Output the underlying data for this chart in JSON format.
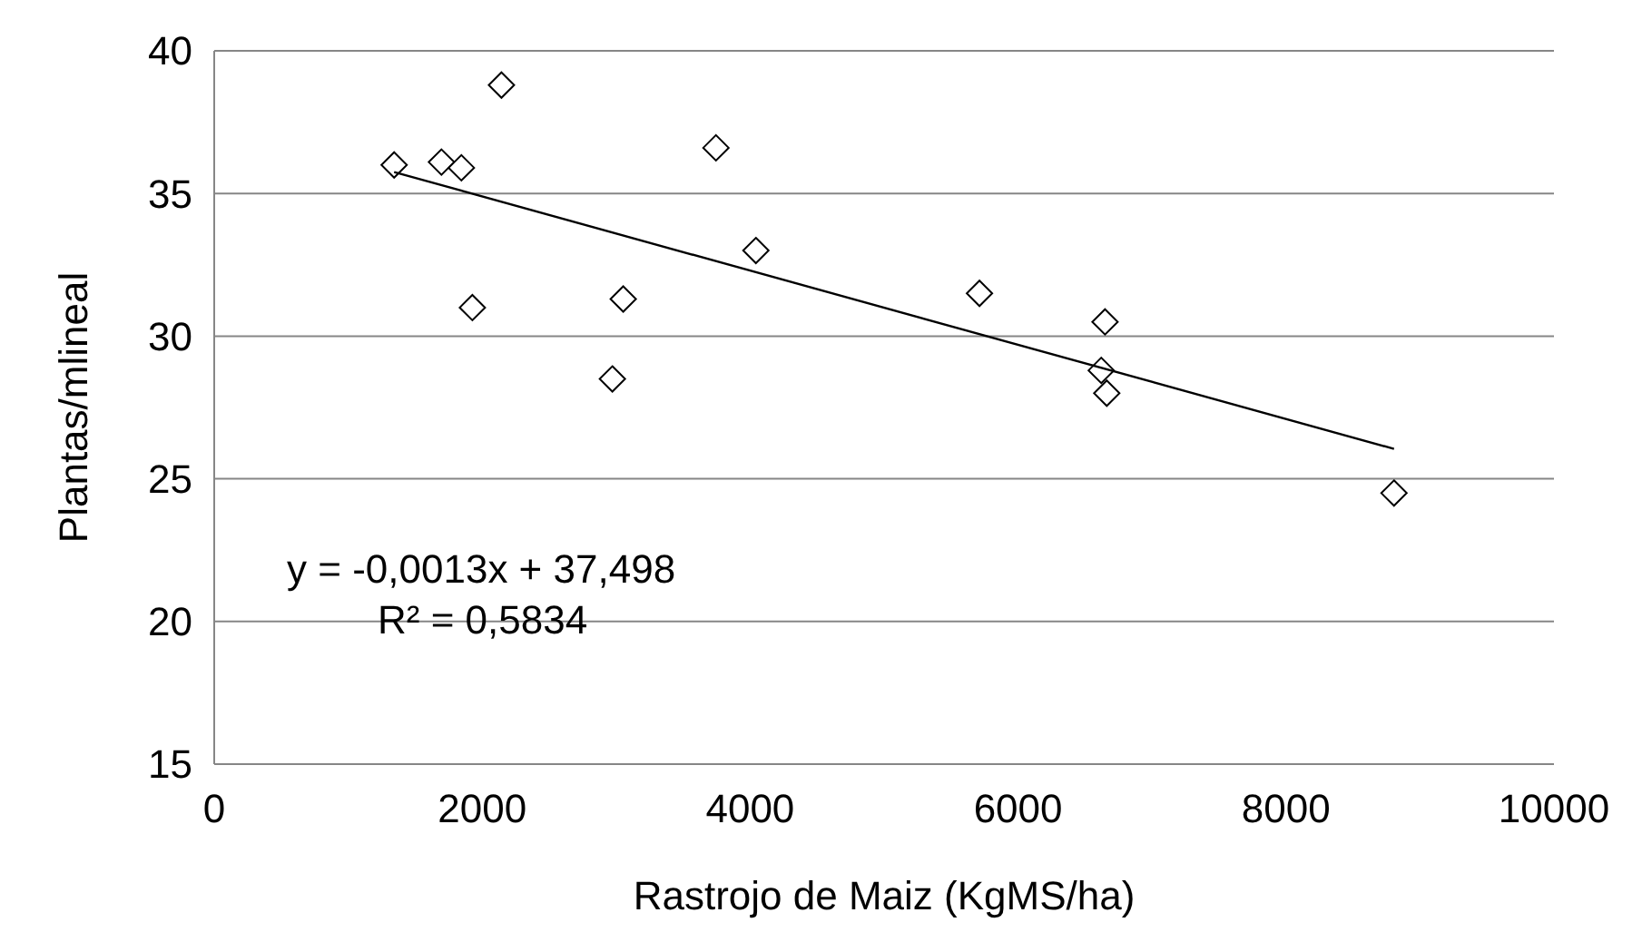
{
  "chart_data": {
    "type": "scatter",
    "xlabel": "Rastrojo de Maiz (KgMS/ha)",
    "ylabel": "Plantas/mlineal",
    "xlim": [
      0,
      10000
    ],
    "xticks": [
      0,
      2000,
      4000,
      6000,
      8000,
      10000
    ],
    "ylim": [
      15,
      40
    ],
    "yticks": [
      15,
      20,
      25,
      30,
      35,
      40
    ],
    "grid": "y",
    "series": [
      {
        "color": "#000000",
        "marker": "diamond",
        "x": [
          1343,
          1696,
          1845,
          2144,
          1927,
          2972,
          3053,
          3745,
          4043,
          5712,
          6649,
          6621,
          6662,
          8806
        ],
        "values": [
          36.0,
          36.1,
          35.9,
          38.8,
          31.0,
          28.5,
          31.3,
          36.6,
          33.0,
          31.5,
          30.5,
          28.8,
          28.0,
          24.5
        ]
      },
      {
        "type": "line",
        "color": "#000000",
        "marker": "none",
        "line_style": "solid",
        "x": [
          1343,
          8806
        ],
        "values": [
          35.75,
          26.05
        ]
      }
    ],
    "annotations": [
      "y = -0,0013x + 37,498",
      "R² = 0,5834"
    ]
  }
}
